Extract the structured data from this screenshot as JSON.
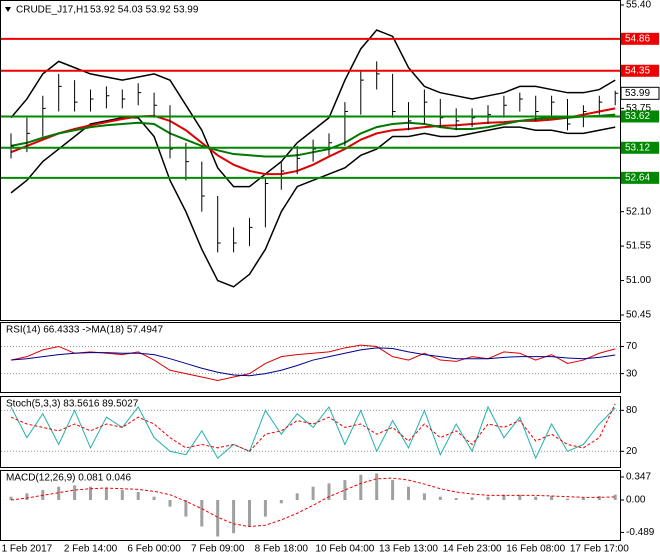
{
  "chart_data": [
    {
      "type": "ohlc",
      "title": "CRUDE_J17,H1",
      "subtitle": "53.92 54.03 53.92 53.99",
      "categories": [
        null,
        "1 Feb 2017",
        null,
        null,
        null,
        "2 Feb 14:00",
        null,
        null,
        null,
        "6 Feb 00:00",
        null,
        null,
        null,
        "7 Feb 09:00",
        null,
        null,
        null,
        "8 Feb 18:00",
        null,
        null,
        null,
        "10 Feb 04:00",
        null,
        null,
        null,
        "13 Feb 13:00",
        null,
        null,
        null,
        "14 Feb 23:00",
        null,
        null,
        null,
        "16 Feb 08:00",
        null,
        null,
        null,
        "17 Feb 17:00",
        null
      ],
      "high": [
        53.35,
        53.6,
        53.95,
        54.3,
        54.2,
        54.05,
        54.1,
        54.05,
        54.15,
        54.0,
        53.8,
        53.2,
        52.9,
        52.35,
        51.85,
        52.0,
        52.65,
        52.9,
        53.15,
        53.25,
        53.35,
        53.85,
        54.35,
        54.5,
        54.3,
        53.85,
        54.05,
        53.9,
        53.75,
        53.75,
        53.8,
        53.95,
        54.0,
        53.95,
        53.95,
        53.9,
        53.8,
        53.95,
        54.03
      ],
      "low": [
        52.95,
        53.05,
        53.3,
        53.7,
        53.7,
        53.7,
        53.75,
        53.75,
        53.8,
        53.6,
        52.95,
        52.6,
        52.1,
        51.45,
        51.45,
        51.55,
        51.85,
        52.45,
        52.7,
        52.9,
        53.0,
        53.15,
        53.65,
        54.05,
        53.6,
        53.4,
        53.5,
        53.45,
        53.4,
        53.45,
        53.5,
        53.6,
        53.7,
        53.55,
        53.6,
        53.4,
        53.45,
        53.65,
        53.8
      ],
      "close": [
        53.15,
        53.35,
        53.75,
        54.1,
        53.85,
        53.9,
        53.95,
        53.9,
        54.0,
        53.8,
        53.1,
        52.9,
        52.35,
        51.6,
        51.6,
        51.85,
        52.55,
        52.75,
        52.95,
        53.1,
        53.2,
        53.7,
        54.2,
        54.3,
        53.7,
        53.55,
        53.85,
        53.6,
        53.55,
        53.6,
        53.65,
        53.8,
        53.9,
        53.7,
        53.85,
        53.5,
        53.7,
        53.85,
        53.99
      ],
      "color": "#000000",
      "bands": {
        "color": "#000000",
        "upper": [
          53.6,
          53.9,
          54.3,
          54.5,
          54.4,
          54.3,
          54.25,
          54.2,
          54.25,
          54.3,
          54.2,
          53.8,
          53.4,
          52.8,
          52.5,
          52.5,
          52.7,
          52.9,
          53.2,
          53.4,
          53.6,
          54.2,
          54.7,
          55.0,
          54.9,
          54.4,
          54.1,
          54.0,
          53.95,
          53.9,
          53.95,
          54.0,
          54.1,
          54.1,
          54.05,
          54.0,
          54.0,
          54.05,
          54.2
        ],
        "lower": [
          52.4,
          52.6,
          52.9,
          53.1,
          53.3,
          53.5,
          53.55,
          53.6,
          53.6,
          53.3,
          52.6,
          52.1,
          51.5,
          51.0,
          50.9,
          51.1,
          51.5,
          52.1,
          52.5,
          52.6,
          52.7,
          52.8,
          53.0,
          53.1,
          53.3,
          53.3,
          53.35,
          53.3,
          53.3,
          53.35,
          53.4,
          53.45,
          53.45,
          53.4,
          53.4,
          53.35,
          53.35,
          53.4,
          53.45
        ]
      },
      "moving_averages": [
        {
          "color": "#dd0000",
          "values": [
            53.05,
            53.15,
            53.25,
            53.35,
            53.42,
            53.48,
            53.53,
            53.58,
            53.62,
            53.63,
            53.55,
            53.4,
            53.2,
            53.0,
            52.85,
            52.75,
            52.7,
            52.7,
            52.75,
            52.85,
            52.98,
            53.1,
            53.25,
            53.35,
            53.4,
            53.42,
            53.45,
            53.47,
            53.48,
            53.5,
            53.52,
            53.53,
            53.55,
            53.55,
            53.57,
            53.6,
            53.65,
            53.7,
            53.75
          ]
        },
        {
          "color": "#007700",
          "values": [
            53.15,
            53.2,
            53.28,
            53.35,
            53.4,
            53.45,
            53.48,
            53.5,
            53.52,
            53.5,
            53.35,
            53.25,
            53.15,
            53.08,
            53.02,
            53.0,
            52.98,
            52.98,
            53.0,
            53.05,
            53.1,
            53.2,
            53.35,
            53.45,
            53.5,
            53.52,
            53.5,
            53.45,
            53.42,
            53.42,
            53.45,
            53.5,
            53.55,
            53.58,
            53.6,
            53.6,
            53.62,
            53.63,
            53.65
          ]
        }
      ],
      "levels": [
        {
          "value": 54.86,
          "color": "#ee0000"
        },
        {
          "value": 54.35,
          "color": "#ee0000"
        },
        {
          "value": 53.62,
          "color": "#008800"
        },
        {
          "value": 53.12,
          "color": "#008800"
        },
        {
          "value": 52.64,
          "color": "#008800"
        }
      ],
      "last": 53.99,
      "ylim": [
        50.37,
        55.48
      ],
      "yticks": [
        {
          "value": 55.4,
          "label": "55.40"
        },
        53.75,
        {
          "value": 52.1,
          "label": "52.10"
        },
        51.55,
        {
          "value": 51.0,
          "label": "51.00"
        },
        50.45
      ]
    },
    {
      "type": "line",
      "title": "RSI(14) 66.4333  ->MA(18) 57.4947",
      "ylim": [
        3,
        106
      ],
      "yticks": [
        70,
        30
      ],
      "series": [
        {
          "color": "#dd0000",
          "style": "solid",
          "values": [
            50,
            55,
            65,
            70,
            60,
            62,
            60,
            58,
            62,
            50,
            35,
            30,
            25,
            20,
            25,
            30,
            45,
            55,
            58,
            60,
            62,
            68,
            72,
            70,
            55,
            50,
            60,
            50,
            48,
            55,
            52,
            62,
            60,
            50,
            58,
            45,
            50,
            60,
            66.4333
          ]
        },
        {
          "color": "#00008b",
          "style": "solid",
          "values": [
            50,
            52,
            55,
            58,
            60,
            61,
            61,
            60,
            60,
            58,
            52,
            45,
            38,
            32,
            28,
            27,
            30,
            35,
            42,
            50,
            55,
            60,
            65,
            68,
            67,
            62,
            58,
            55,
            52,
            52,
            52,
            54,
            55,
            55,
            55,
            53,
            52,
            54,
            57.4947
          ]
        }
      ]
    },
    {
      "type": "line",
      "title": "Stoch(5,3,3) 83.5616 89.5027",
      "ylim": [
        -3,
        101
      ],
      "yticks": [
        80,
        20
      ],
      "series": [
        {
          "color": "#20b2aa",
          "style": "solid",
          "values": [
            85,
            40,
            75,
            30,
            80,
            25,
            70,
            55,
            85,
            40,
            20,
            15,
            50,
            10,
            30,
            20,
            80,
            45,
            75,
            55,
            85,
            30,
            80,
            20,
            65,
            25,
            80,
            15,
            60,
            20,
            85,
            40,
            70,
            10,
            60,
            20,
            30,
            60,
            83.5616
          ]
        },
        {
          "color": "#ee0000",
          "style": "dashed",
          "values": [
            70,
            60,
            55,
            50,
            60,
            50,
            60,
            55,
            70,
            60,
            40,
            25,
            30,
            25,
            30,
            20,
            45,
            50,
            65,
            60,
            70,
            55,
            60,
            45,
            55,
            35,
            60,
            40,
            50,
            30,
            60,
            55,
            65,
            35,
            45,
            30,
            25,
            40,
            89.5027
          ]
        }
      ]
    },
    {
      "type": "macd",
      "title": "MACD(12,26,9) 0.081 0.046",
      "ylim": [
        -0.603,
        0.452
      ],
      "yticks": [
        0.347,
        {
          "value": 0,
          "label": "0.00"
        },
        -0.489
      ],
      "histogram": {
        "color": "#a0a0a0",
        "values": [
          0.05,
          0.1,
          0.15,
          0.2,
          0.22,
          0.2,
          0.18,
          0.15,
          0.12,
          0.05,
          -0.1,
          -0.25,
          -0.4,
          -0.55,
          -0.5,
          -0.4,
          -0.25,
          -0.05,
          0.1,
          0.2,
          0.25,
          0.3,
          0.38,
          0.4,
          0.3,
          0.2,
          0.1,
          0.05,
          0.03,
          0.04,
          0.05,
          0.08,
          0.08,
          0.05,
          0.06,
          0.02,
          0.03,
          0.06,
          0.081
        ]
      },
      "series": [
        {
          "color": "#ee0000",
          "style": "dashed",
          "values": [
            0.0,
            0.03,
            0.07,
            0.11,
            0.15,
            0.17,
            0.18,
            0.17,
            0.16,
            0.13,
            0.08,
            -0.02,
            -0.13,
            -0.26,
            -0.36,
            -0.4,
            -0.38,
            -0.3,
            -0.2,
            -0.08,
            0.05,
            0.15,
            0.25,
            0.32,
            0.33,
            0.3,
            0.24,
            0.17,
            0.12,
            0.09,
            0.07,
            0.07,
            0.07,
            0.07,
            0.06,
            0.05,
            0.04,
            0.04,
            0.046
          ]
        }
      ]
    }
  ]
}
